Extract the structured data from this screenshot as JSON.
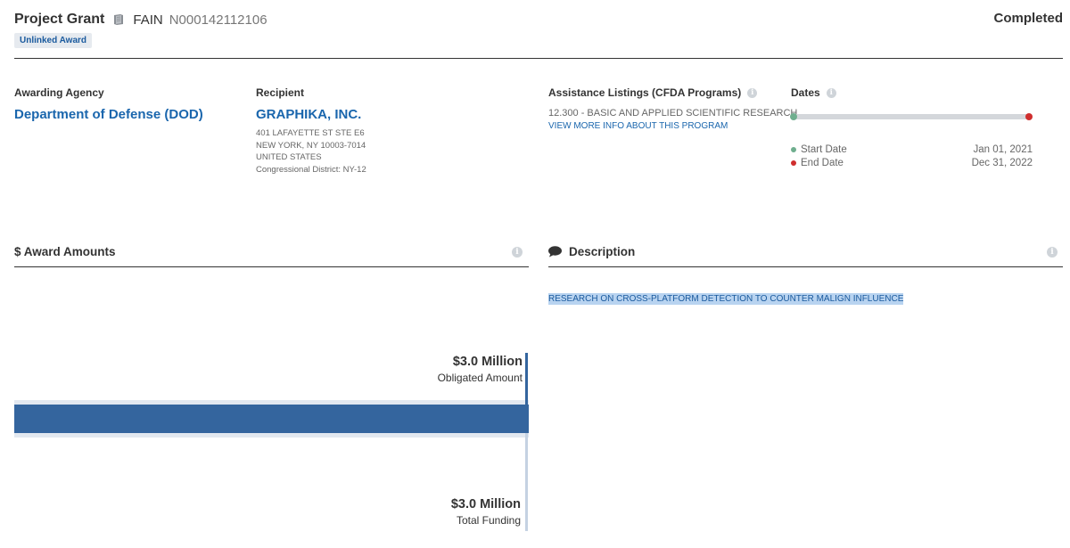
{
  "header": {
    "award_type": "Project Grant",
    "fain_label": "FAIN",
    "fain_value": "N000142112106",
    "badge": "Unlinked Award",
    "status": "Completed"
  },
  "awarding_agency": {
    "label": "Awarding Agency",
    "name": "Department of Defense (DOD)"
  },
  "recipient": {
    "label": "Recipient",
    "name": "GRAPHIKA, INC.",
    "address_lines": [
      "401 LAFAYETTE ST STE E6",
      "NEW YORK, NY 10003-7014",
      "UNITED STATES",
      "Congressional District: NY-12"
    ]
  },
  "assistance_listings": {
    "label": "Assistance Listings (CFDA Programs)",
    "program": "12.300 - BASIC AND APPLIED SCIENTIFIC RESEARCH",
    "link": "VIEW MORE INFO ABOUT THIS PROGRAM"
  },
  "dates": {
    "label": "Dates",
    "start_label": "Start Date",
    "start_value": "Jan 01, 2021",
    "end_label": "End Date",
    "end_value": "Dec 31, 2022",
    "progress": 1.0
  },
  "award_amounts": {
    "title": "$ Award Amounts",
    "obligated_value": "$3.0 Million",
    "obligated_label": "Obligated Amount",
    "funding_value": "$3.0 Million",
    "funding_label": "Total Funding"
  },
  "description": {
    "title": "Description",
    "text": "RESEARCH ON CROSS-PLATFORM DETECTION TO COUNTER MALIGN INFLUENCE"
  },
  "colors": {
    "link": "#1a66ad",
    "bar": "#34659e",
    "start_dot": "#6fae8e",
    "end_dot": "#cf2e2e"
  }
}
